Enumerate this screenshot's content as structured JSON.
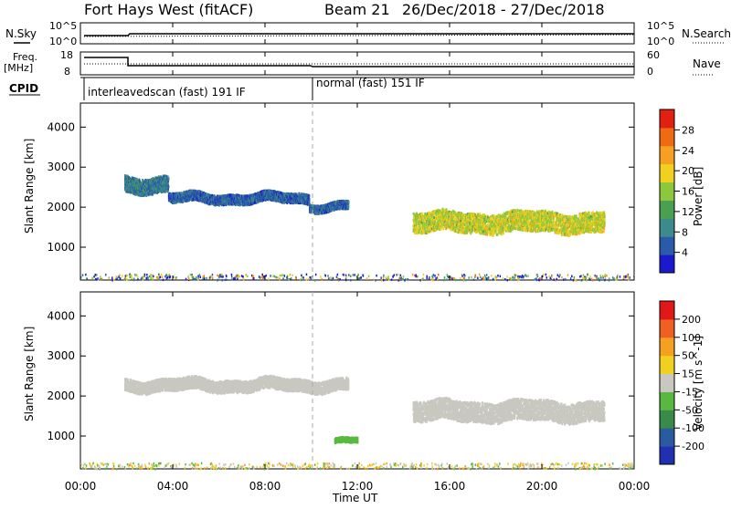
{
  "header": {
    "title": "Fort Hays West (fitACF)",
    "beam": "Beam 21",
    "date_range": "26/Dec/2018 - 27/Dec/2018"
  },
  "strips": {
    "nsky_label": "N.Sky",
    "nsearch_label": "N.Search",
    "noise_left_ticks": [
      "10^5",
      "10^0"
    ],
    "noise_right_ticks": [
      "10^5",
      "10^0"
    ],
    "freq_label_line1": "Freq.",
    "freq_label_line2": "[MHz]",
    "freq_ticks": [
      "18",
      "8"
    ],
    "nave_label": "Nave",
    "nave_ticks": [
      "60",
      "0"
    ],
    "cpid_label": "CPID",
    "cpid_modes": [
      {
        "label": "interleavedscan (fast) 191 IF",
        "start_hour": 0,
        "end_hour": 10
      },
      {
        "label": "normal (fast) 151 IF",
        "start_hour": 10,
        "end_hour": 24
      }
    ]
  },
  "axes": {
    "x_ticks": [
      "00:00",
      "04:00",
      "08:00",
      "12:00",
      "16:00",
      "20:00",
      "00:00"
    ],
    "x_label": "Time UT",
    "y_label": "Slant Range [km]",
    "y_ticks": [
      "4000",
      "3000",
      "2000",
      "1000"
    ]
  },
  "colors": {
    "power_scale": [
      "#1a1acc",
      "#2a5aa8",
      "#3c8a8a",
      "#4aa050",
      "#8cc83c",
      "#f0d020",
      "#f5a020",
      "#f06a14",
      "#e02010"
    ],
    "velocity_scale": [
      "#2030b0",
      "#2a5aa0",
      "#3a8a4a",
      "#5ab840",
      "#c8c8c0",
      "#f0d020",
      "#f5a020",
      "#f06020",
      "#e01818"
    ],
    "power_main": "#3c8a8a",
    "power_hot": "#f06a14",
    "velocity_main": "#c8c8c0",
    "velocity_green": "#5ab840",
    "velocity_orange": "#f5a020"
  },
  "colorbars": {
    "power": {
      "label": "Power [dB]",
      "ticks": [
        "28",
        "24",
        "20",
        "16",
        "12",
        "8",
        "4"
      ]
    },
    "velocity": {
      "label": "Velocity [m s^-1]",
      "ticks": [
        "200",
        "100",
        "50",
        "15",
        "-15",
        "-50",
        "-100",
        "-200"
      ]
    }
  },
  "chart_data": {
    "type": "heatmap",
    "title": "Fort Hays West (fitACF)",
    "xlabel": "Time UT",
    "ylabel": "Slant Range [km]",
    "xlim": [
      "00:00",
      "00:00"
    ],
    "ylim": [
      180,
      4600
    ],
    "panels": [
      {
        "name": "Power",
        "unit": "dB",
        "scale": [
          0,
          32
        ],
        "bands": [
          {
            "t_start": 1.9,
            "t_end": 3.8,
            "range_center": 2600,
            "range_halfwidth": 200,
            "value": 8
          },
          {
            "t_start": 3.8,
            "t_end": 9.9,
            "range_center": 2250,
            "range_halfwidth": 120,
            "value": 6
          },
          {
            "t_start": 9.9,
            "t_end": 11.6,
            "range_center": 2050,
            "range_halfwidth": 100,
            "value": 6
          },
          {
            "t_start": 14.4,
            "t_end": 22.7,
            "range_center": 1650,
            "range_halfwidth": 250,
            "value": 18
          }
        ],
        "ground_scatter": {
          "t_start": 0,
          "t_end": 24,
          "range": [
            200,
            350
          ]
        }
      },
      {
        "name": "Velocity",
        "unit": "m s^-1",
        "scale": [
          -200,
          200
        ],
        "bands": [
          {
            "t_start": 1.9,
            "t_end": 11.6,
            "range_center": 2300,
            "range_halfwidth": 150,
            "value": 0
          },
          {
            "t_start": 14.4,
            "t_end": 22.7,
            "range_center": 1650,
            "range_halfwidth": 250,
            "value": 0
          },
          {
            "t_start": 11.0,
            "t_end": 12.0,
            "range_center": 900,
            "range_halfwidth": 60,
            "value": -40
          }
        ],
        "ground_scatter": {
          "t_start": 0,
          "t_end": 24,
          "range": [
            200,
            350
          ]
        }
      }
    ]
  }
}
